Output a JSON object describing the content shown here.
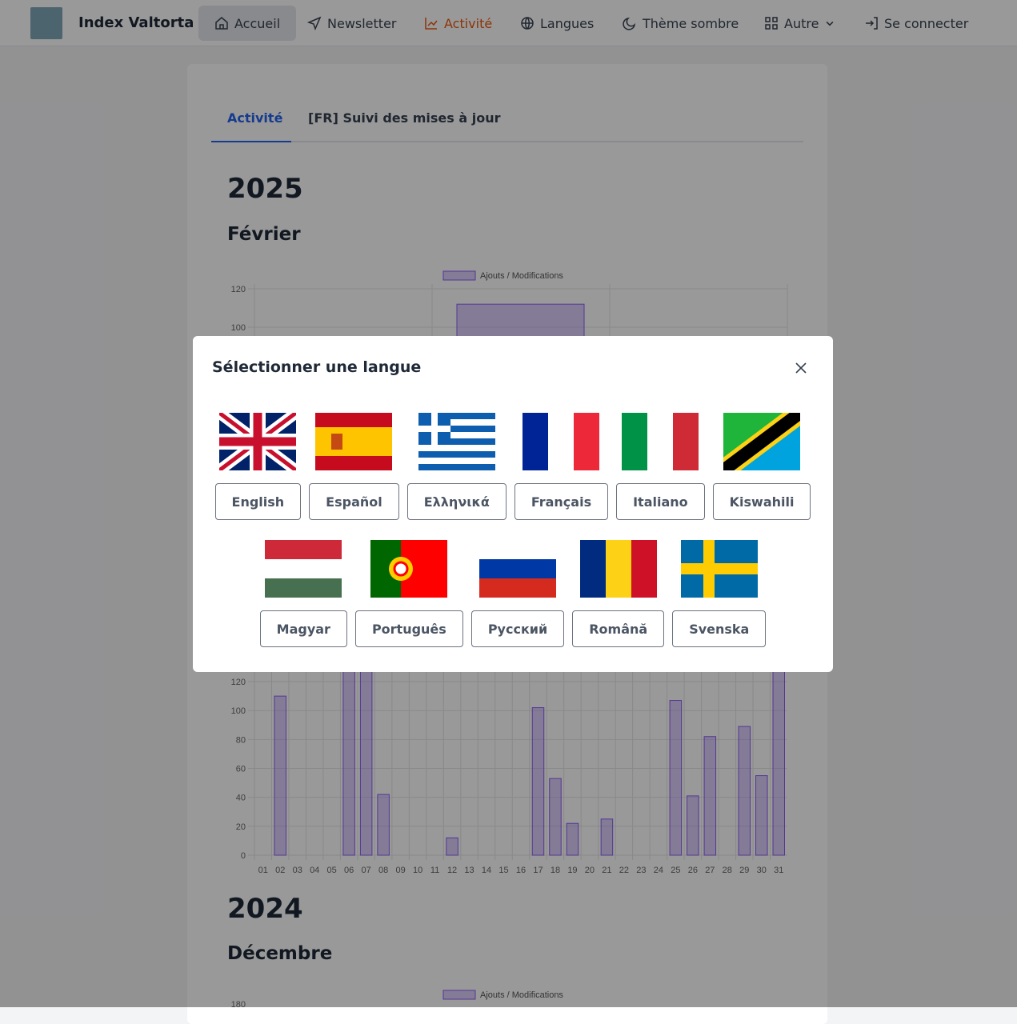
{
  "nav": {
    "brand": "Index Valtorta",
    "items": [
      {
        "label": "Accueil",
        "icon": "home-icon"
      },
      {
        "label": "Newsletter",
        "icon": "send-icon"
      },
      {
        "label": "Activité",
        "icon": "chart-line-icon"
      },
      {
        "label": "Langues",
        "icon": "globe-icon"
      },
      {
        "label": "Thème sombre",
        "icon": "moon-icon"
      },
      {
        "label": "Autre",
        "icon": "grid-icon"
      },
      {
        "label": "Se connecter",
        "icon": "login-icon"
      }
    ],
    "accent": "#ea580c"
  },
  "tabs": [
    {
      "label": "Activité"
    },
    {
      "label": "[FR] Suivi des mises à jour"
    }
  ],
  "sections": [
    {
      "year": "2025",
      "month": "Février"
    },
    {
      "year": "2024",
      "month": "Décembre"
    }
  ],
  "chart_data": [
    {
      "type": "bar",
      "legend": "Ajouts / Modifications",
      "yticks": [
        100,
        120
      ],
      "values": [
        112
      ],
      "color": "#8b5cf6"
    },
    {
      "type": "bar",
      "legend": "Ajouts / Modifications",
      "categories": [
        "01",
        "02",
        "03",
        "04",
        "05",
        "06",
        "07",
        "08",
        "09",
        "10",
        "11",
        "12",
        "13",
        "14",
        "15",
        "16",
        "17",
        "18",
        "19",
        "20",
        "21",
        "22",
        "23",
        "24",
        "25",
        "26",
        "27",
        "28",
        "29",
        "30",
        "31"
      ],
      "values": [
        0,
        110,
        0,
        0,
        0,
        130,
        130,
        42,
        0,
        0,
        0,
        12,
        0,
        0,
        0,
        0,
        102,
        53,
        22,
        0,
        25,
        0,
        0,
        0,
        107,
        41,
        82,
        0,
        89,
        55,
        130
      ],
      "yticks": [
        0,
        20,
        40,
        60,
        80,
        100,
        120
      ],
      "color": "#8b5cf6"
    },
    {
      "type": "bar",
      "legend": "Ajouts / Modifications",
      "yticks": [
        180
      ]
    }
  ],
  "modal": {
    "title": "Sélectionner une langue",
    "close_icon": "close-icon",
    "languages": [
      {
        "label": "English",
        "flag": "flag-uk-icon"
      },
      {
        "label": "Español",
        "flag": "flag-spain-icon"
      },
      {
        "label": "Ελληνικά",
        "flag": "flag-greece-icon"
      },
      {
        "label": "Français",
        "flag": "flag-france-icon"
      },
      {
        "label": "Italiano",
        "flag": "flag-italy-icon"
      },
      {
        "label": "Kiswahili",
        "flag": "flag-tanzania-icon"
      },
      {
        "label": "Magyar",
        "flag": "flag-hungary-icon"
      },
      {
        "label": "Português",
        "flag": "flag-portugal-icon"
      },
      {
        "label": "Русский",
        "flag": "flag-russia-icon"
      },
      {
        "label": "Română",
        "flag": "flag-romania-icon"
      },
      {
        "label": "Svenska",
        "flag": "flag-sweden-icon"
      }
    ]
  }
}
